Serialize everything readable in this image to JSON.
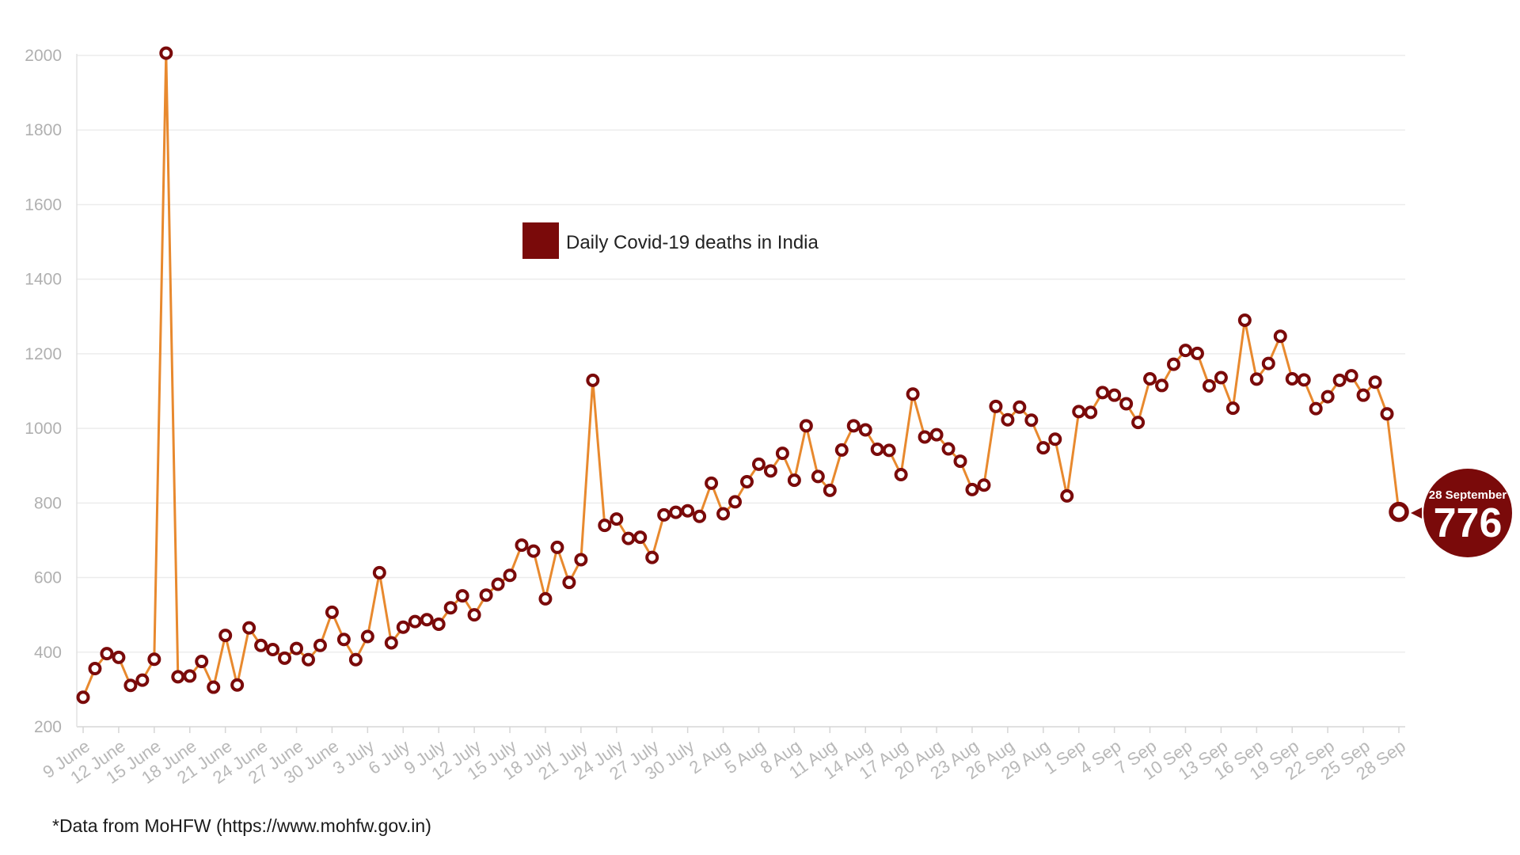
{
  "chart_data": {
    "type": "line",
    "title": "",
    "xlabel": "",
    "ylabel": "",
    "ylim": [
      200,
      2000
    ],
    "yticks": [
      200,
      400,
      600,
      800,
      1000,
      1200,
      1400,
      1600,
      1800,
      2000
    ],
    "grid": true,
    "legend_position": "top-center",
    "series": [
      {
        "name": "Daily Covid-19 deaths in India",
        "color": "#e8892e",
        "marker_color": "#7a0a0a",
        "x": [
          "9 June",
          "10 June",
          "11 June",
          "12 June",
          "13 June",
          "14 June",
          "15 June",
          "16 June",
          "17 June",
          "18 June",
          "19 June",
          "20 June",
          "21 June",
          "22 June",
          "23 June",
          "24 June",
          "25 June",
          "26 June",
          "27 June",
          "28 June",
          "29 June",
          "30 June",
          "1 July",
          "2 July",
          "3 July",
          "4 July",
          "5 July",
          "6 July",
          "7 July",
          "8 July",
          "9 July",
          "10 July",
          "11 July",
          "12 July",
          "13 July",
          "14 July",
          "15 July",
          "16 July",
          "17 July",
          "18 July",
          "19 July",
          "20 July",
          "21 July",
          "22 July",
          "23 July",
          "24 July",
          "25 July",
          "26 July",
          "27 July",
          "28 July",
          "29 July",
          "30 July",
          "31 July",
          "1 Aug",
          "2 Aug",
          "3 Aug",
          "4 Aug",
          "5 Aug",
          "6 Aug",
          "7 Aug",
          "8 Aug",
          "9 Aug",
          "10 Aug",
          "11 Aug",
          "12 Aug",
          "13 Aug",
          "14 Aug",
          "15 Aug",
          "16 Aug",
          "17 Aug",
          "18 Aug",
          "19 Aug",
          "20 Aug",
          "21 Aug",
          "22 Aug",
          "23 Aug",
          "24 Aug",
          "25 Aug",
          "26 Aug",
          "27 Aug",
          "28 Aug",
          "29 Aug",
          "30 Aug",
          "31 Aug",
          "1 Sep",
          "2 Sep",
          "3 Sep",
          "4 Sep",
          "5 Sep",
          "6 Sep",
          "7 Sep",
          "8 Sep",
          "9 Sep",
          "10 Sep",
          "11 Sep",
          "12 Sep",
          "13 Sep",
          "14 Sep",
          "15 Sep",
          "16 Sep",
          "17 Sep",
          "18 Sep",
          "19 Sep",
          "20 Sep",
          "21 Sep",
          "22 Sep",
          "23 Sep",
          "24 Sep",
          "25 Sep",
          "26 Sep",
          "27 Sep",
          "28 Sep"
        ],
        "values": [
          279,
          356,
          396,
          386,
          311,
          325,
          381,
          2006,
          334,
          336,
          375,
          306,
          445,
          312,
          465,
          418,
          407,
          384,
          410,
          380,
          418,
          507,
          434,
          380,
          442,
          613,
          425,
          467,
          482,
          487,
          475,
          519,
          551,
          500,
          553,
          582,
          606,
          687,
          671,
          543,
          681,
          587,
          648,
          1129,
          740,
          757,
          705,
          708,
          654,
          768,
          775,
          779,
          764,
          853,
          771,
          803,
          857,
          904,
          886,
          933,
          861,
          1007,
          871,
          834,
          942,
          1007,
          996,
          944,
          941,
          876,
          1092,
          977,
          983,
          945,
          912,
          836,
          848,
          1059,
          1023,
          1057,
          1022,
          948,
          971,
          819,
          1045,
          1043,
          1096,
          1089,
          1066,
          1016,
          1133,
          1115,
          1172,
          1209,
          1201,
          1114,
          1136,
          1054,
          1290,
          1132,
          1174,
          1247,
          1133,
          1130,
          1053,
          1085,
          1129,
          1141,
          1089,
          1124,
          1039,
          776
        ]
      }
    ],
    "x_tick_labels": [
      "9 June",
      "12 June",
      "15 June",
      "18 June",
      "21 June",
      "24 June",
      "27 June",
      "30 June",
      "3 July",
      "6 July",
      "9 July",
      "12 July",
      "15 July",
      "18 July",
      "21 July",
      "24 July",
      "27 July",
      "30 July",
      "2 Aug",
      "5 Aug",
      "8 Aug",
      "11 Aug",
      "14 Aug",
      "17 Aug",
      "20 Aug",
      "23 Aug",
      "26 Aug",
      "29 Aug",
      "1 Sep",
      "4 Sep",
      "7 Sep",
      "10 Sep",
      "13 Sep",
      "16 Sep",
      "19 Sep",
      "22 Sep",
      "25 Sep",
      "28 Sep"
    ],
    "annotation": {
      "label": "28 September",
      "value": "776",
      "color": "#7a0a0a"
    }
  },
  "footer": {
    "source": "*Data from MoHFW (https://www.mohfw.gov.in)"
  }
}
